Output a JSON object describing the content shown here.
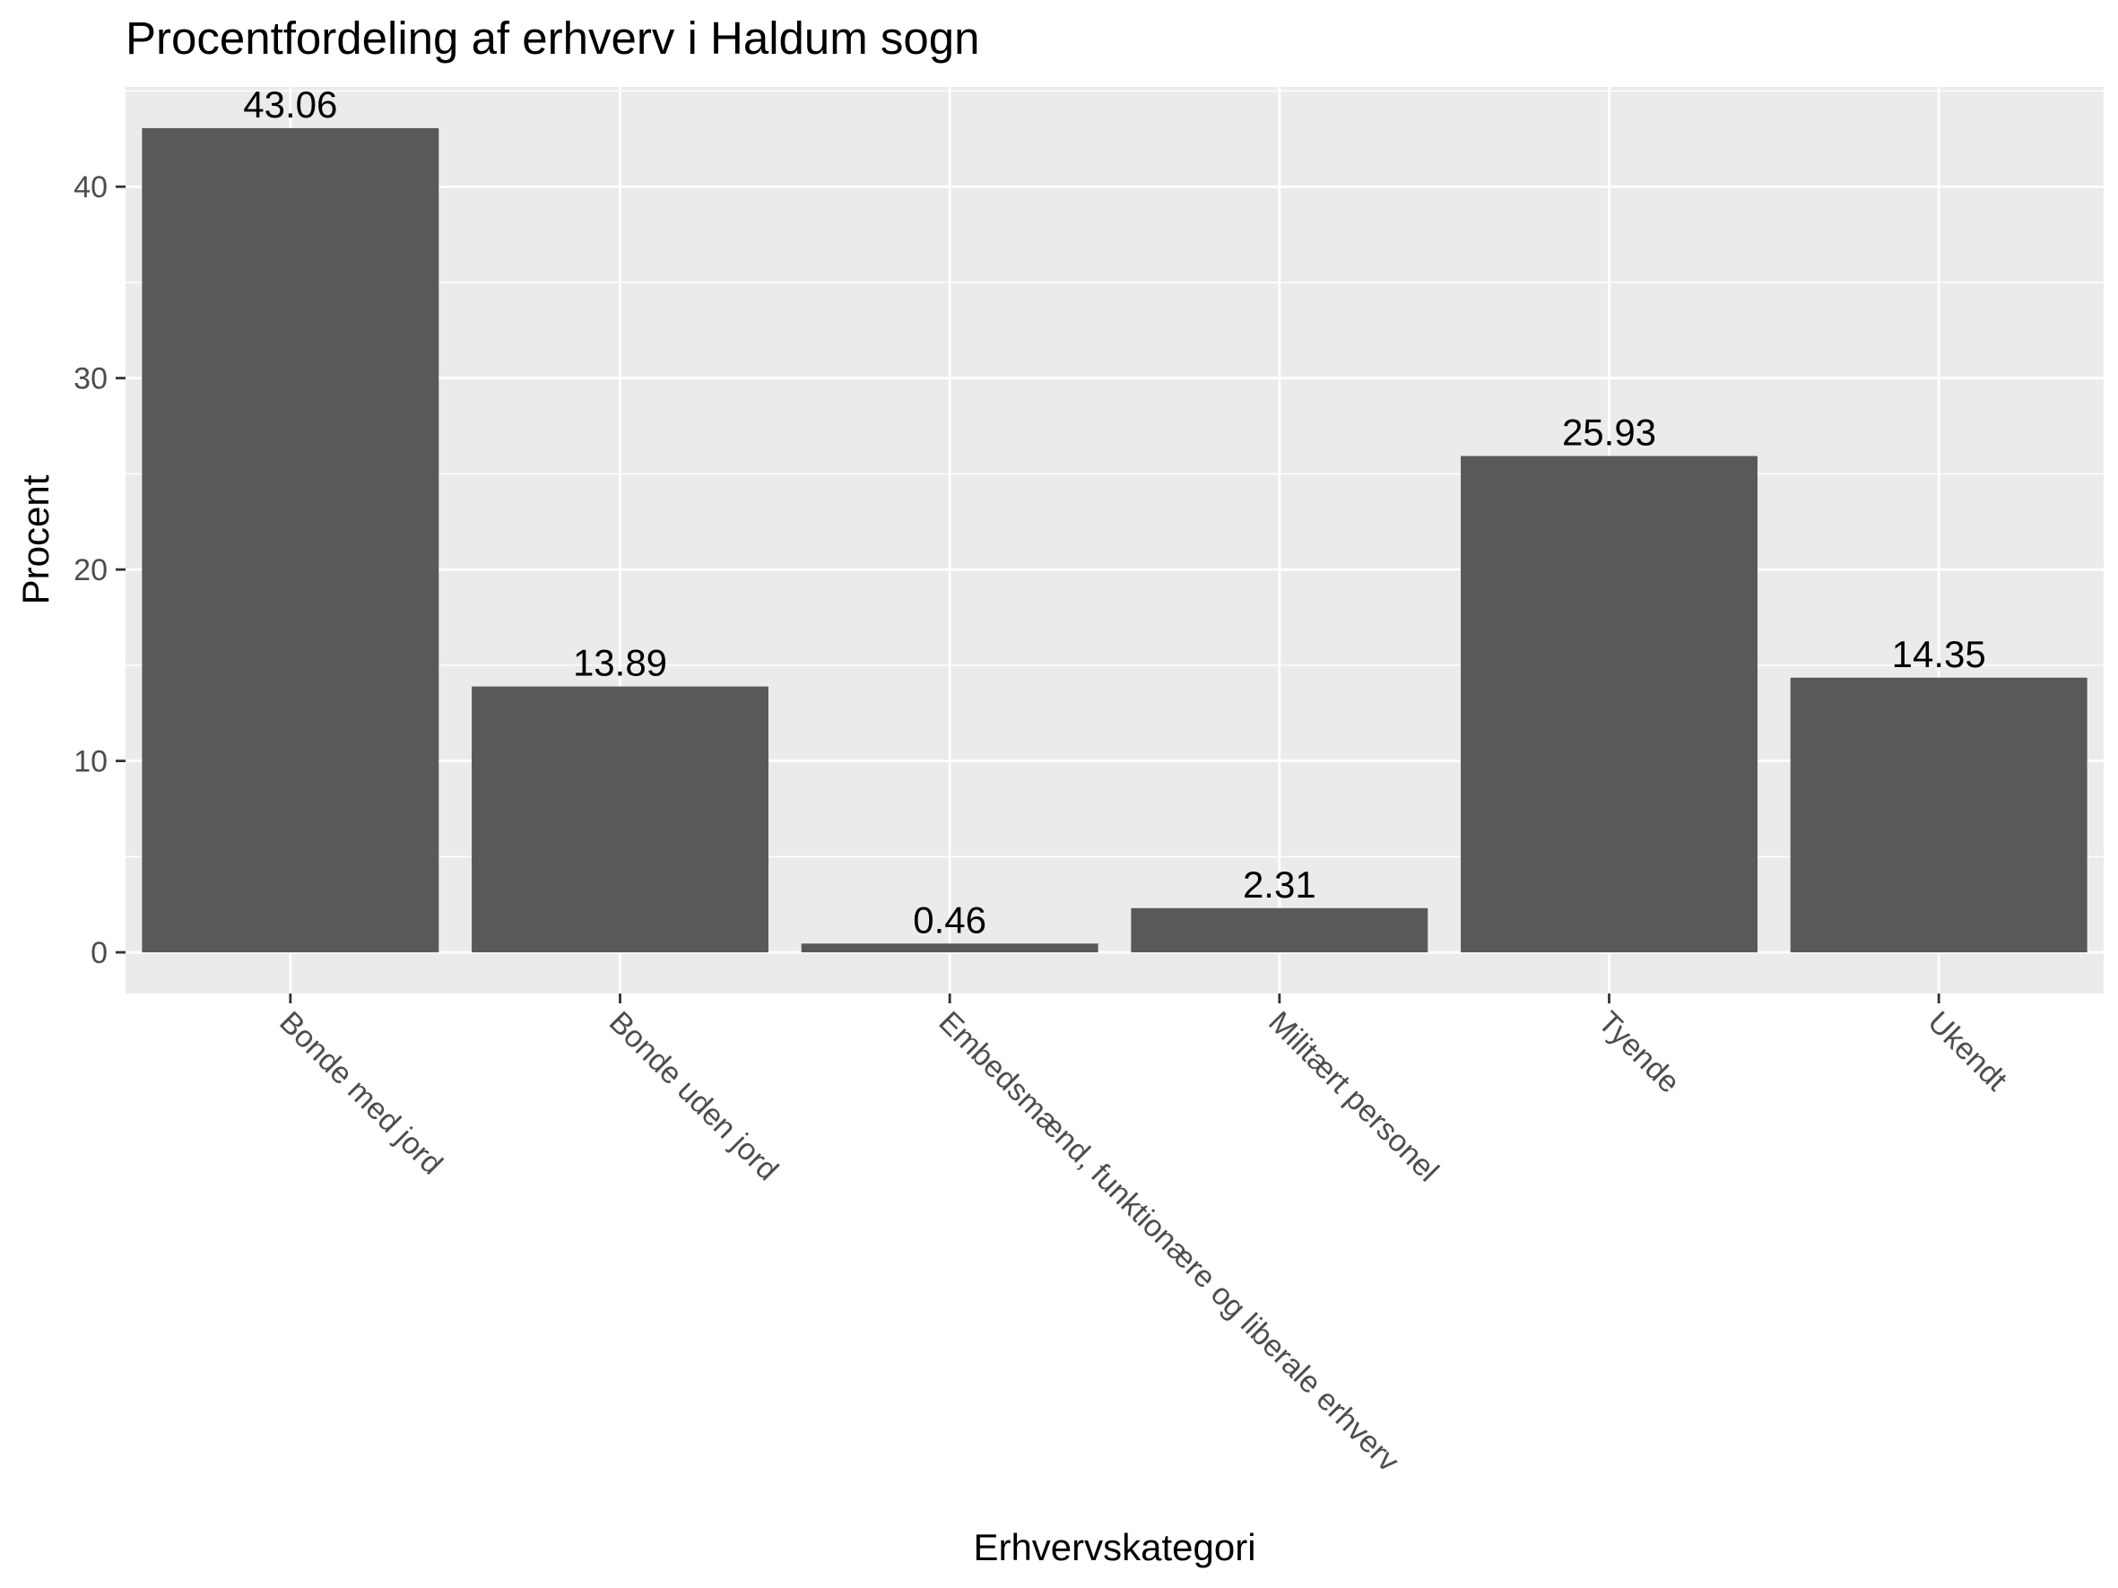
{
  "chart_data": {
    "type": "bar",
    "title": "Procentfordeling af erhverv i Haldum sogn",
    "xlabel": "Erhvervskategori",
    "ylabel": "Procent",
    "categories": [
      "Bonde med jord",
      "Bonde uden jord",
      "Embedsmænd, funktionære og liberale erhverv",
      "Militært personel",
      "Tyende",
      "Ukendt"
    ],
    "values": [
      43.06,
      13.89,
      0.46,
      2.31,
      25.93,
      14.35
    ],
    "value_labels": [
      "43.06",
      "13.89",
      "0.46",
      "2.31",
      "25.93",
      "14.35"
    ],
    "yticks": [
      0,
      10,
      20,
      30,
      40
    ],
    "ytick_labels": [
      "0",
      "10",
      "20",
      "30",
      "40"
    ],
    "ylim": [
      -2.15,
      45.21
    ],
    "grid": true,
    "legend": "none",
    "colors": {
      "bar": "#595959",
      "panel": "#ebebeb",
      "grid_major": "#ffffff",
      "tick_text": "#4d4d4d",
      "tick_mark": "#333333"
    }
  }
}
